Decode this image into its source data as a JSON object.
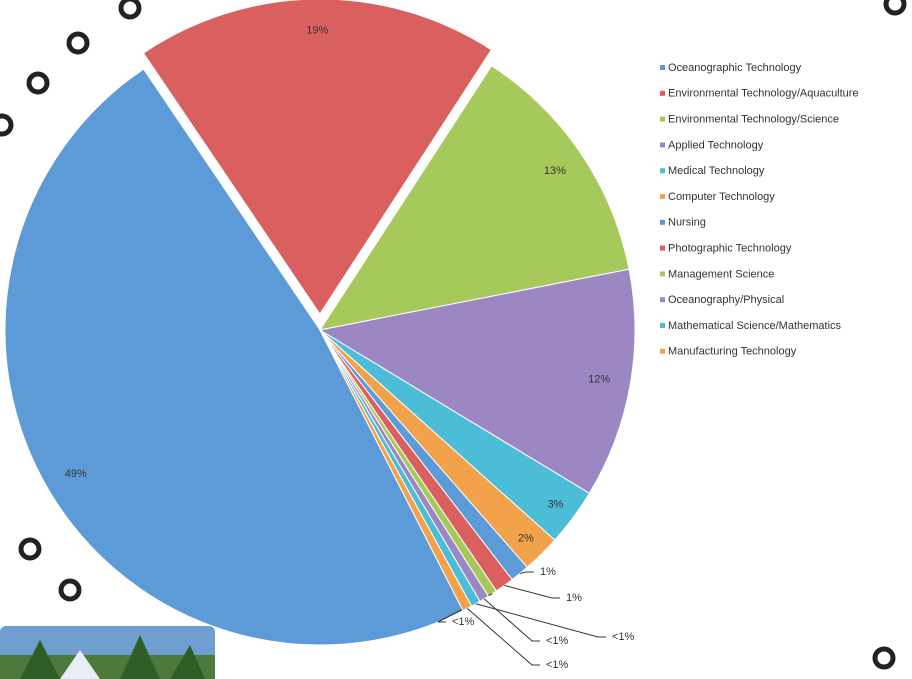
{
  "chart_data": {
    "type": "pie",
    "categories": [
      "Oceanographic Technology",
      "Environmental Technology/Aquaculture",
      "Environmental Technology/Science",
      "Applied Technology",
      "Medical Technology",
      "Computer Technology",
      "Nursing",
      "Photographic Technology",
      "Management Science",
      "Oceanography/Physical",
      "Mathematical Science/Mathematics",
      "Manufacturing Technology"
    ],
    "values": [
      49,
      19,
      13,
      12,
      3,
      2,
      1,
      1,
      0.5,
      0.5,
      0.5,
      0.5
    ],
    "value_labels": [
      "49%",
      "19%",
      "13%",
      "12%",
      "3%",
      "2%",
      "1%",
      "1%",
      "<1%",
      "<1%",
      "<1%",
      "<1%"
    ],
    "colors": [
      "#5d9bd8",
      "#d9605e",
      "#a6c95b",
      "#9c87c2",
      "#4cbdd6",
      "#f2a24b",
      "#5d9bd8",
      "#d9605e",
      "#a6c95b",
      "#9c87c2",
      "#4cbdd6",
      "#f2a24b"
    ],
    "legend": "right"
  }
}
